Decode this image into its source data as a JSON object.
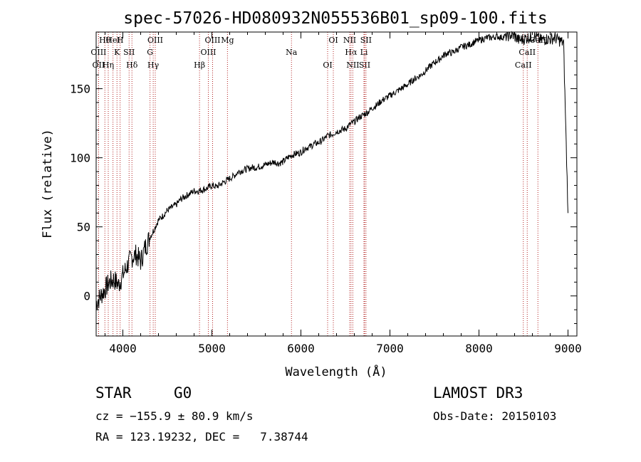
{
  "chart_data": {
    "type": "line",
    "title": "spec-57026-HD080932N055536B01_sp09-100.fits",
    "xlabel": "Wavelength (Å)",
    "ylabel": "Flux (relative)",
    "xlim": [
      3700,
      9100
    ],
    "ylim": [
      -29,
      191
    ],
    "x_ticks": [
      4000,
      5000,
      6000,
      7000,
      8000,
      9000
    ],
    "y_ticks": [
      0,
      50,
      100,
      150
    ],
    "series": [
      {
        "name": "spectrum",
        "x": [
          3700,
          3750,
          3800,
          3850,
          3900,
          3950,
          4000,
          4050,
          4100,
          4150,
          4200,
          4250,
          4300,
          4350,
          4400,
          4450,
          4500,
          4550,
          4600,
          4650,
          4700,
          4750,
          4800,
          4850,
          4900,
          4950,
          5000,
          5050,
          5100,
          5150,
          5200,
          5250,
          5300,
          5350,
          5400,
          5450,
          5500,
          5550,
          5600,
          5650,
          5700,
          5750,
          5800,
          5850,
          5900,
          5950,
          6000,
          6050,
          6100,
          6150,
          6200,
          6250,
          6300,
          6350,
          6400,
          6450,
          6500,
          6550,
          6600,
          6650,
          6700,
          6750,
          6800,
          6850,
          6900,
          6950,
          7000,
          7050,
          7100,
          7150,
          7200,
          7250,
          7300,
          7350,
          7400,
          7450,
          7500,
          7550,
          7600,
          7650,
          7700,
          7750,
          7800,
          7850,
          7900,
          7950,
          8000,
          8050,
          8100,
          8150,
          8200,
          8250,
          8300,
          8350,
          8400,
          8450,
          8500,
          8550,
          8600,
          8650,
          8700,
          8750,
          8800,
          8850,
          8900,
          8950,
          9000
        ],
        "y": [
          -5,
          0,
          5,
          10,
          12,
          8,
          15,
          22,
          28,
          30,
          25,
          35,
          42,
          48,
          55,
          58,
          62,
          64,
          66,
          70,
          72,
          74,
          76,
          76,
          77,
          78,
          80,
          79,
          81,
          83,
          85,
          87,
          90,
          91,
          92,
          93,
          93,
          94,
          95,
          96,
          97,
          96,
          97,
          100,
          102,
          103,
          104,
          107,
          108,
          110,
          111,
          113,
          116,
          117,
          119,
          120,
          121,
          124,
          126,
          129,
          131,
          133,
          136,
          138,
          141,
          143,
          145,
          147,
          149,
          151,
          153,
          156,
          158,
          160,
          163,
          166,
          169,
          171,
          174,
          176,
          176,
          178,
          180,
          181,
          182,
          184,
          185,
          186,
          187,
          187,
          188,
          187,
          188,
          189,
          188,
          185,
          186,
          187,
          188,
          187,
          185,
          186,
          186,
          187,
          185,
          183,
          60
        ]
      }
    ],
    "lines": [
      {
        "name": "Hθ",
        "x": 3798
      },
      {
        "name": "K",
        "x": 3934
      },
      {
        "name": "Hδ",
        "x": 4102
      },
      {
        "name": "OIII",
        "x": 4364
      },
      {
        "name": "OIII",
        "x": 4960
      },
      {
        "name": "OII",
        "x": 3727
      },
      {
        "name": "HeI",
        "x": 3889
      },
      {
        "name": "SII",
        "x": 4070
      },
      {
        "name": "Hγ",
        "x": 4341
      },
      {
        "name": "OIII",
        "x": 5008
      },
      {
        "name": "OIII",
        "x": 3727
      },
      {
        "name": "Hη",
        "x": 3836
      },
      {
        "name": "H",
        "x": 3969
      },
      {
        "name": "G",
        "x": 4305
      },
      {
        "name": "Hβ",
        "x": 4861
      },
      {
        "name": "Mg",
        "x": 5175
      },
      {
        "name": "Na",
        "x": 5894
      },
      {
        "name": "OI",
        "x": 6300
      },
      {
        "name": "OI",
        "x": 6364
      },
      {
        "name": "Hα",
        "x": 6563
      },
      {
        "name": "SII",
        "x": 6716
      },
      {
        "name": "NII",
        "x": 6548
      },
      {
        "name": "Li",
        "x": 6708
      },
      {
        "name": "NII",
        "x": 6583
      },
      {
        "name": "SII",
        "x": 6731
      },
      {
        "name": "CaII",
        "x": 8542
      },
      {
        "name": "CaII",
        "x": 8498
      },
      {
        "name": "CaII",
        "x": 8662
      }
    ]
  },
  "info": {
    "class": "STAR",
    "subclass": "G0",
    "survey": "LAMOST DR3",
    "cz": "cz = −155.9 ± 80.9 km/s",
    "obs_date": "Obs-Date: 20150103",
    "radec": "RA = 123.19232, DEC =   7.38744"
  }
}
